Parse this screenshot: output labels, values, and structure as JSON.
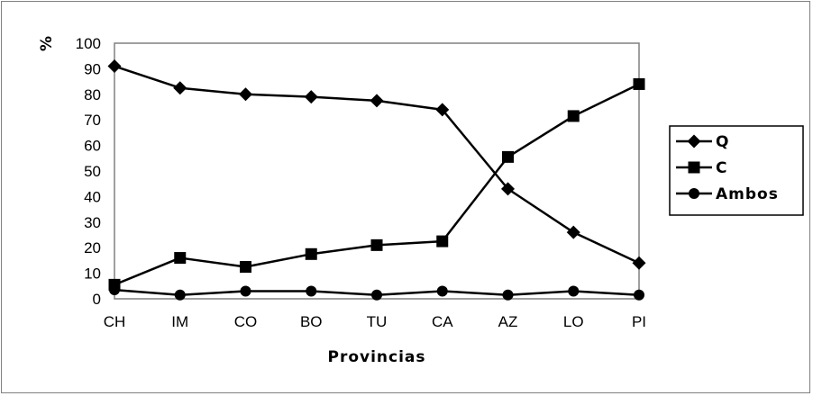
{
  "chart_data": {
    "type": "line",
    "title": "",
    "xlabel": "Provincias",
    "ylabel": "%",
    "categories": [
      "CH",
      "IM",
      "CO",
      "BO",
      "TU",
      "CA",
      "AZ",
      "LO",
      "PI"
    ],
    "ylim": [
      0,
      100
    ],
    "yticks": [
      "0",
      "10",
      "20",
      "30",
      "40",
      "50",
      "60",
      "70",
      "80",
      "90",
      "100"
    ],
    "grid": false,
    "legend_position": "right",
    "series": [
      {
        "name": "Q",
        "marker": "diamond",
        "values": [
          91,
          82.5,
          80,
          79,
          77.5,
          74,
          43,
          26,
          14
        ]
      },
      {
        "name": "C",
        "marker": "square",
        "values": [
          5.5,
          16,
          12.5,
          17.5,
          21,
          22.5,
          55.5,
          71.5,
          84
        ]
      },
      {
        "name": "Ambos",
        "marker": "circle",
        "values": [
          3.5,
          1.5,
          3,
          3,
          1.5,
          3,
          1.5,
          3,
          1.5
        ]
      }
    ],
    "colors": {
      "line": "#000000",
      "plot_border": "#808080",
      "frame_border": "#7f7f7f"
    }
  }
}
